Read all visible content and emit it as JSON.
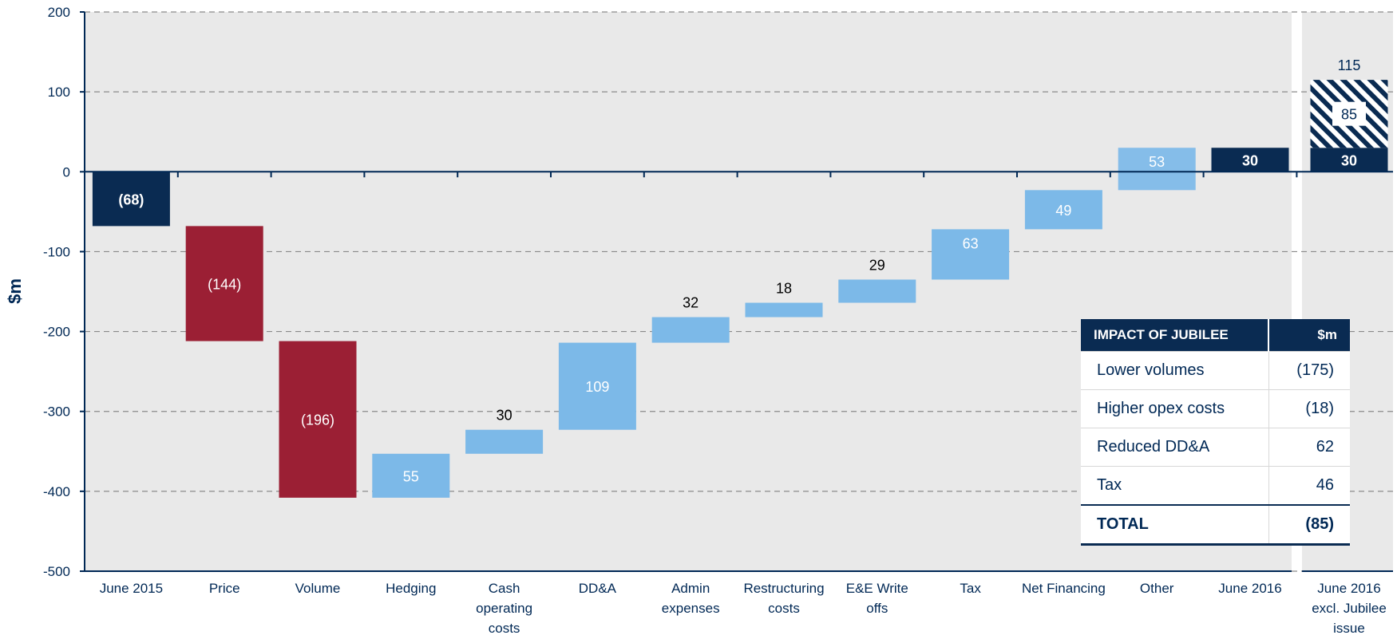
{
  "chart_data": {
    "type": "waterfall",
    "ylabel": "$m",
    "ylim": [
      -500,
      200
    ],
    "yticks": [
      200,
      100,
      0,
      -100,
      -200,
      -300,
      -400,
      -500
    ],
    "grid": true,
    "colors": {
      "total": "#0a2b52",
      "negative": "#9b1f34",
      "positive": "#7cb9e8",
      "jubilee": "#0a2b52"
    },
    "steps": [
      {
        "category": [
          "June 2015"
        ],
        "start": 0,
        "end": -68,
        "kind": "total",
        "label": "(68)",
        "label_pos": "inside"
      },
      {
        "category": [
          "Price"
        ],
        "start": -68,
        "end": -212,
        "kind": "negative",
        "label": "(144)",
        "label_pos": "inside"
      },
      {
        "category": [
          "Volume"
        ],
        "start": -212,
        "end": -408,
        "kind": "negative",
        "label": "(196)",
        "label_pos": "inside"
      },
      {
        "category": [
          "Hedging"
        ],
        "start": -408,
        "end": -353,
        "kind": "positive",
        "label": "55",
        "label_pos": "inside"
      },
      {
        "category": [
          "Cash",
          "operating",
          "costs"
        ],
        "start": -353,
        "end": -323,
        "kind": "positive",
        "label": "30",
        "label_pos": "above"
      },
      {
        "category": [
          "DD&A"
        ],
        "start": -323,
        "end": -214,
        "kind": "positive",
        "label": "109",
        "label_pos": "inside"
      },
      {
        "category": [
          "Admin",
          "expenses"
        ],
        "start": -214,
        "end": -182,
        "kind": "positive",
        "label": "32",
        "label_pos": "above"
      },
      {
        "category": [
          "Restructuring",
          "costs"
        ],
        "start": -182,
        "end": -164,
        "kind": "positive",
        "label": "18",
        "label_pos": "above"
      },
      {
        "category": [
          "E&E Write",
          "offs"
        ],
        "start": -164,
        "end": -135,
        "kind": "positive",
        "label": "29",
        "label_pos": "above"
      },
      {
        "category": [
          "Tax"
        ],
        "start": -135,
        "end": -72,
        "kind": "positive",
        "label": "63",
        "label_pos": "inside-top"
      },
      {
        "category": [
          "Net Financing"
        ],
        "start": -72,
        "end": -23,
        "kind": "positive",
        "label": "49",
        "label_pos": "inside"
      },
      {
        "category": [
          "Other"
        ],
        "start": -23,
        "end": 30,
        "kind": "positive",
        "label": "53",
        "label_pos": "inside-top"
      },
      {
        "category": [
          "June 2016"
        ],
        "start": 0,
        "end": 30,
        "kind": "total",
        "label": "30",
        "label_pos": "inside"
      }
    ],
    "side_panel": {
      "category": [
        "June 2016",
        "excl. Jubilee",
        "issue"
      ],
      "base": 30,
      "jubilee_impact": 85,
      "total": 115,
      "base_label": "30",
      "impact_label": "85",
      "total_label": "115"
    }
  },
  "table": {
    "header": [
      "IMPACT OF JUBILEE",
      "$m"
    ],
    "rows": [
      [
        "Lower volumes",
        "(175)"
      ],
      [
        "Higher opex costs",
        "(18)"
      ],
      [
        "Reduced DD&A",
        "62"
      ],
      [
        "Tax",
        "46"
      ]
    ],
    "total": [
      "TOTAL",
      "(85)"
    ]
  }
}
